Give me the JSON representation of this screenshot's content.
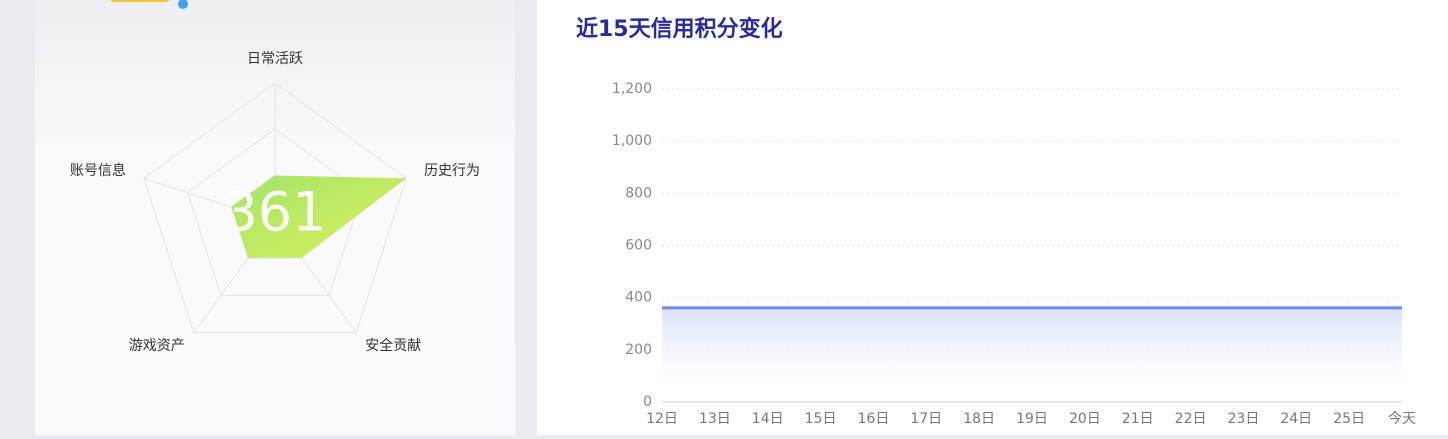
{
  "chart_data": [
    {
      "type": "radar",
      "indicators": [
        "日常活跃",
        "历史行为",
        "安全贡献",
        "游戏资产",
        "账号信息"
      ],
      "values": [
        33,
        100,
        33,
        33,
        33
      ],
      "rlim": [
        0,
        100
      ],
      "center_label": "361",
      "color": "#b5e84a"
    },
    {
      "type": "line",
      "title": "近15天信用积分变化",
      "categories": [
        "12日",
        "13日",
        "14日",
        "15日",
        "16日",
        "17日",
        "18日",
        "19日",
        "20日",
        "21日",
        "22日",
        "23日",
        "24日",
        "25日",
        "今天"
      ],
      "values": [
        361,
        361,
        361,
        361,
        361,
        361,
        361,
        361,
        361,
        361,
        361,
        361,
        361,
        361,
        361
      ],
      "ylim": [
        0,
        1200
      ],
      "yticks": [
        0,
        200,
        400,
        600,
        800,
        {
          "value": 1000,
          "label": "1,000"
        },
        {
          "value": 1200,
          "label": "1,200"
        }
      ],
      "grid": true,
      "color": "#6b8ee8"
    }
  ]
}
